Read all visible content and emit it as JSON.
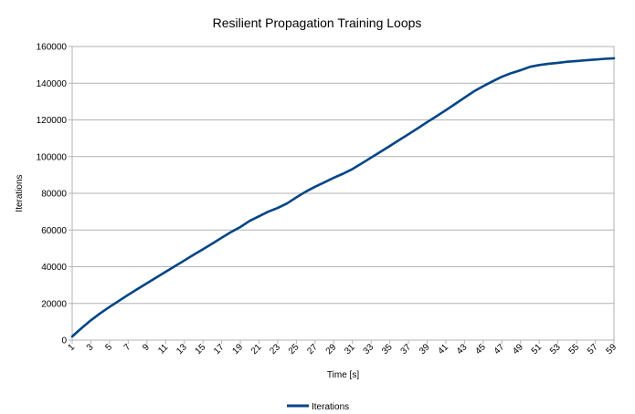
{
  "chart_data": {
    "type": "line",
    "title": "Resilient Propagation Training Loops",
    "xlabel": "Time [s]",
    "ylabel": "Iterations",
    "x_tick_labels": [
      "1",
      "3",
      "5",
      "7",
      "9",
      "11",
      "13",
      "15",
      "17",
      "19",
      "21",
      "23",
      "25",
      "27",
      "29",
      "31",
      "33",
      "35",
      "37",
      "39",
      "41",
      "43",
      "45",
      "47",
      "49",
      "51",
      "53",
      "55",
      "57",
      "59"
    ],
    "ylim": [
      0,
      160000
    ],
    "y_ticks": [
      0,
      20000,
      40000,
      60000,
      80000,
      100000,
      120000,
      140000,
      160000
    ],
    "grid": true,
    "legend_position": "bottom",
    "series": [
      {
        "name": "Iterations",
        "color": "#004586",
        "x": [
          1,
          2,
          3,
          4,
          5,
          6,
          7,
          8,
          9,
          10,
          11,
          12,
          13,
          14,
          15,
          16,
          17,
          18,
          19,
          20,
          21,
          22,
          23,
          24,
          25,
          26,
          27,
          28,
          29,
          30,
          31,
          32,
          33,
          34,
          35,
          36,
          37,
          38,
          39,
          40,
          41,
          42,
          43,
          44,
          45,
          46,
          47,
          48,
          49,
          50,
          51,
          52,
          53,
          54,
          55,
          56,
          57,
          58,
          59
        ],
        "values": [
          2000,
          6500,
          10800,
          14600,
          18100,
          21400,
          24700,
          27900,
          31000,
          34100,
          37200,
          40300,
          43400,
          46500,
          49500,
          52600,
          55800,
          58900,
          61600,
          65000,
          67500,
          70000,
          72000,
          74500,
          77800,
          80900,
          83600,
          86000,
          88500,
          90700,
          93200,
          96300,
          99500,
          102600,
          105800,
          109000,
          112200,
          115500,
          118800,
          122000,
          125300,
          128700,
          132100,
          135500,
          138400,
          141000,
          143500,
          145500,
          147100,
          148900,
          149900,
          150600,
          151100,
          151700,
          152100,
          152500,
          152900,
          153300,
          153600
        ]
      }
    ]
  }
}
